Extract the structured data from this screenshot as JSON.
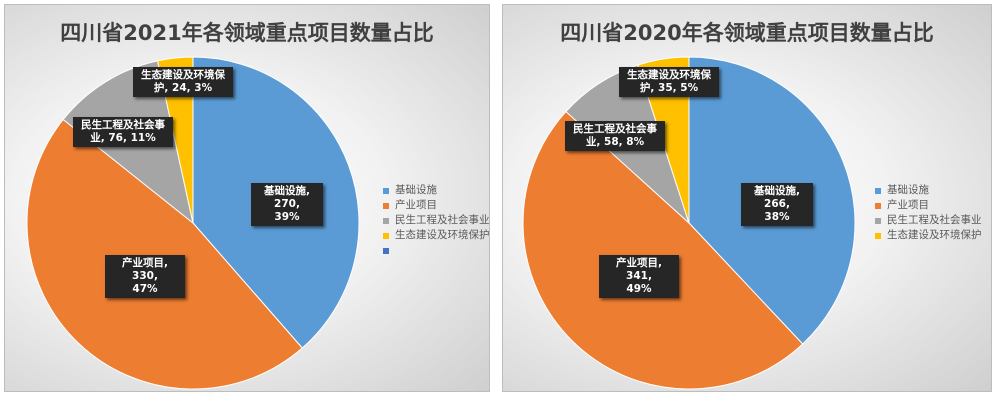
{
  "colors": {
    "基础设施": "#5b9bd5",
    "产业项目": "#ed7d31",
    "民生工程及社会事业": "#a5a5a5",
    "生态建设及环境保护": "#ffc000",
    "extra": "#4472c4"
  },
  "chart_data": [
    {
      "type": "pie",
      "title": "四川省2021年各领域重点项目数量占比",
      "slices": [
        {
          "name": "基础设施",
          "value": 270,
          "percent": "39%",
          "label_line1": "基础设施, 270,",
          "label_line2": "39%"
        },
        {
          "name": "产业项目",
          "value": 330,
          "percent": "47%",
          "label_line1": "产业项目, 330,",
          "label_line2": "47%"
        },
        {
          "name": "民生工程及社会事业",
          "value": 76,
          "percent": "11%",
          "label_line1": "民生工程及社会事",
          "label_line2": "业, 76, 11%"
        },
        {
          "name": "生态建设及环境保护",
          "value": 24,
          "percent": "3%",
          "label_line1": "生态建设及环境保",
          "label_line2": "护, 24, 3%"
        }
      ],
      "legend": [
        "基础设施",
        "产业项目",
        "民生工程及社会事业",
        "生态建设及环境保护",
        ""
      ],
      "legend_placement": "right"
    },
    {
      "type": "pie",
      "title": "四川省2020年各领域重点项目数量占比",
      "slices": [
        {
          "name": "基础设施",
          "value": 266,
          "percent": "38%",
          "label_line1": "基础设施, 266,",
          "label_line2": "38%"
        },
        {
          "name": "产业项目",
          "value": 341,
          "percent": "49%",
          "label_line1": "产业项目, 341,",
          "label_line2": "49%"
        },
        {
          "name": "民生工程及社会事业",
          "value": 58,
          "percent": "8%",
          "label_line1": "民生工程及社会事",
          "label_line2": "业, 58, 8%"
        },
        {
          "name": "生态建设及环境保护",
          "value": 35,
          "percent": "5%",
          "label_line1": "生态建设及环境保",
          "label_line2": "护, 35, 5%"
        }
      ],
      "legend": [
        "基础设施",
        "产业项目",
        "民生工程及社会事业",
        "生态建设及环境保护"
      ],
      "legend_placement": "right"
    }
  ]
}
